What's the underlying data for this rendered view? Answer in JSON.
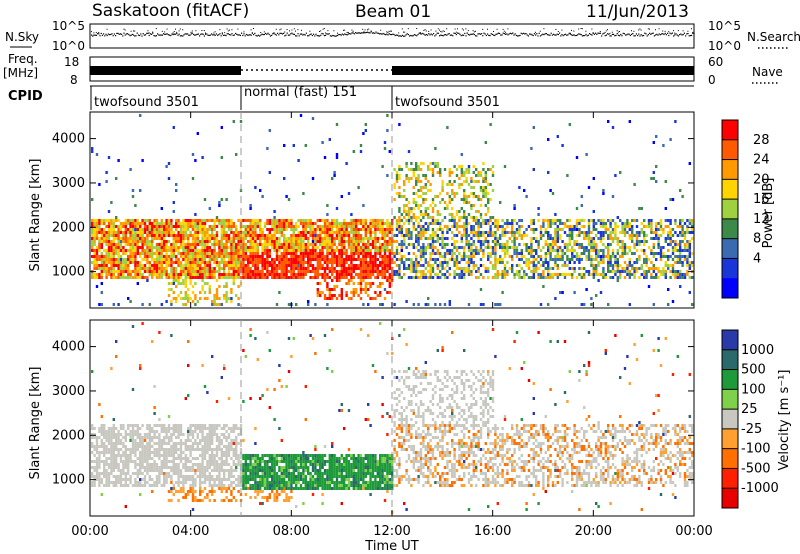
{
  "header": {
    "station": "Saskatoon (fitACF)",
    "beam": "Beam 01",
    "date": "11/Jun/2013"
  },
  "top_panels": {
    "nsky_label": "N.Sky",
    "nsearch_label": "N.Search",
    "noise_ticks_left": [
      "10^5",
      "10^0"
    ],
    "noise_ticks_right": [
      "10^5",
      "10^0"
    ],
    "freq_label_1": "Freq.",
    "freq_label_2": "[MHz]",
    "freq_ticks": [
      "18",
      "8"
    ],
    "nave_label": "Nave",
    "nave_ticks": [
      "60",
      "0"
    ],
    "cpid_label": "CPID",
    "cpid_segments": [
      {
        "label": "twofsound 3501",
        "start_hour": 0,
        "end_hour": 6
      },
      {
        "label": "normal (fast) 151",
        "start_hour": 6,
        "end_hour": 12
      },
      {
        "label": "twofsound 3501",
        "start_hour": 12,
        "end_hour": 24
      }
    ]
  },
  "x_axis": {
    "label": "Time UT",
    "ticks": [
      "00:00",
      "04:00",
      "08:00",
      "12:00",
      "16:00",
      "20:00",
      "00:00"
    ]
  },
  "power_colorbar": {
    "label": "Power [dB]",
    "ticks": [
      "28",
      "24",
      "20",
      "16",
      "12",
      "8",
      "4"
    ],
    "colors": [
      "#ff0000",
      "#ff5a00",
      "#ff9a00",
      "#ffd400",
      "#9ed040",
      "#3c8a4a",
      "#3a6ab0",
      "#1a36d8",
      "#0000ff"
    ]
  },
  "velocity_colorbar": {
    "label": "Velocity [m s⁻¹]",
    "ticks": [
      "1000",
      "500",
      "100",
      "25",
      "-25",
      "-100",
      "-500",
      "-1000"
    ],
    "colors": [
      "#2a3aa8",
      "#2a6a6a",
      "#1f9a3a",
      "#7fd04a",
      "#c8c8c0",
      "#ffa030",
      "#ff7000",
      "#ff2000",
      "#e80000"
    ]
  },
  "chart_data": {
    "type": "heatmap",
    "panels": [
      {
        "name": "Power",
        "ylabel": "Slant Range [km]",
        "ylim": [
          180,
          4600
        ],
        "yticks": [
          1000,
          2000,
          3000,
          4000
        ]
      },
      {
        "name": "Velocity",
        "ylabel": "Slant Range [km]",
        "ylim": [
          180,
          4600
        ],
        "yticks": [
          1000,
          2000,
          3000,
          4000
        ]
      }
    ],
    "xlim_hours": [
      0,
      24
    ],
    "xlabel": "Time UT",
    "ytick_labels": [
      "1000",
      "2000",
      "3000",
      "4000"
    ]
  }
}
